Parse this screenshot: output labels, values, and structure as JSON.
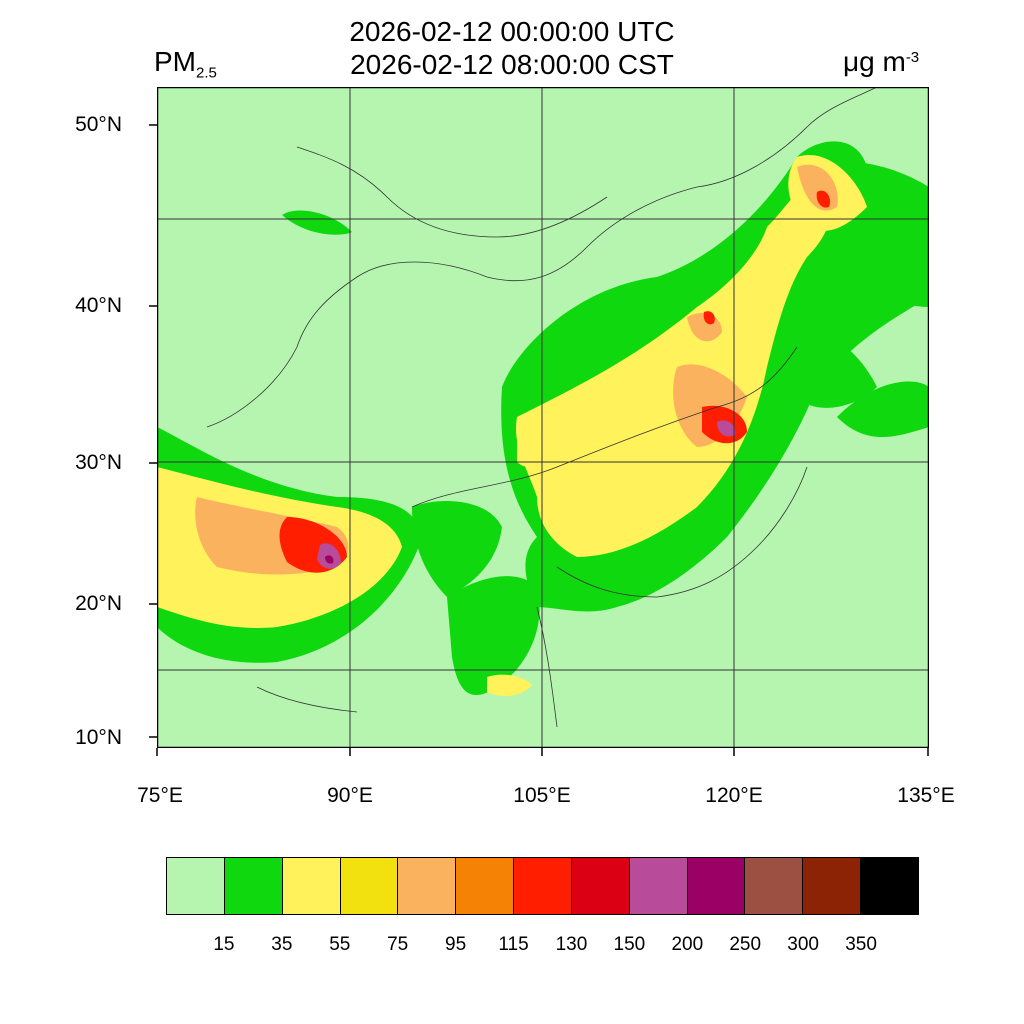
{
  "title": {
    "line1": "2026-02-12 00:00:00 UTC",
    "line2": "2026-02-12 08:00:00 CST"
  },
  "variable": {
    "main": "PM",
    "sub": "2.5"
  },
  "units": {
    "base": "μg m",
    "exp": "-3"
  },
  "axes": {
    "lat_labels": [
      "50°N",
      "40°N",
      "30°N",
      "20°N",
      "10°N"
    ],
    "lon_labels": [
      "75°E",
      "90°E",
      "105°E",
      "120°E",
      "135°E"
    ]
  },
  "colorbar": {
    "colors": [
      "#b5f5b0",
      "#0fd80f",
      "#fff25a",
      "#f2e00f",
      "#fbb25f",
      "#f58205",
      "#ff1e00",
      "#dc0014",
      "#b94b9b",
      "#9b0064",
      "#9b5041",
      "#8c2305",
      "#000000"
    ],
    "labels": [
      "15",
      "35",
      "55",
      "75",
      "95",
      "115",
      "130",
      "150",
      "200",
      "250",
      "300",
      "350"
    ]
  },
  "colors": {
    "background": "#b5f5b0",
    "border_lines": "#333333"
  }
}
